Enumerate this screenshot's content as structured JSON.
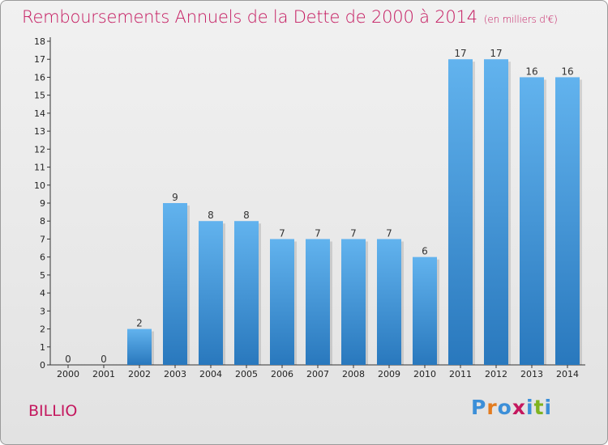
{
  "title": "Remboursements Annuels de la Dette de 2000 à 2014",
  "subtitle": "(en milliers d'€)",
  "commune": "BILLIO",
  "logo": {
    "text": "Proxiti",
    "letter_colors": [
      "#3c8fd8",
      "#e37c1f",
      "#3c8fd8",
      "#c4175e",
      "#3c8fd8",
      "#7fb31f",
      "#3c8fd8"
    ]
  },
  "colors": {
    "bar_top": "#62b3ee",
    "bar_bottom": "#2978bd",
    "title": "#c4175e"
  },
  "chart_data": {
    "type": "bar",
    "title": "Remboursements Annuels de la Dette de 2000 à 2014",
    "subtitle": "(en milliers d'€)",
    "categories": [
      "2000",
      "2001",
      "2002",
      "2003",
      "2004",
      "2005",
      "2006",
      "2007",
      "2008",
      "2009",
      "2010",
      "2011",
      "2012",
      "2013",
      "2014"
    ],
    "values": [
      0,
      0,
      2,
      9,
      8,
      8,
      7,
      7,
      7,
      7,
      6,
      17,
      17,
      16,
      16
    ],
    "yticks": [
      0,
      1,
      2,
      3,
      4,
      5,
      6,
      7,
      8,
      9,
      10,
      11,
      12,
      13,
      14,
      15,
      16,
      17,
      18
    ],
    "ylim": [
      0,
      18
    ],
    "grid": false,
    "xlabel": "",
    "ylabel": ""
  }
}
